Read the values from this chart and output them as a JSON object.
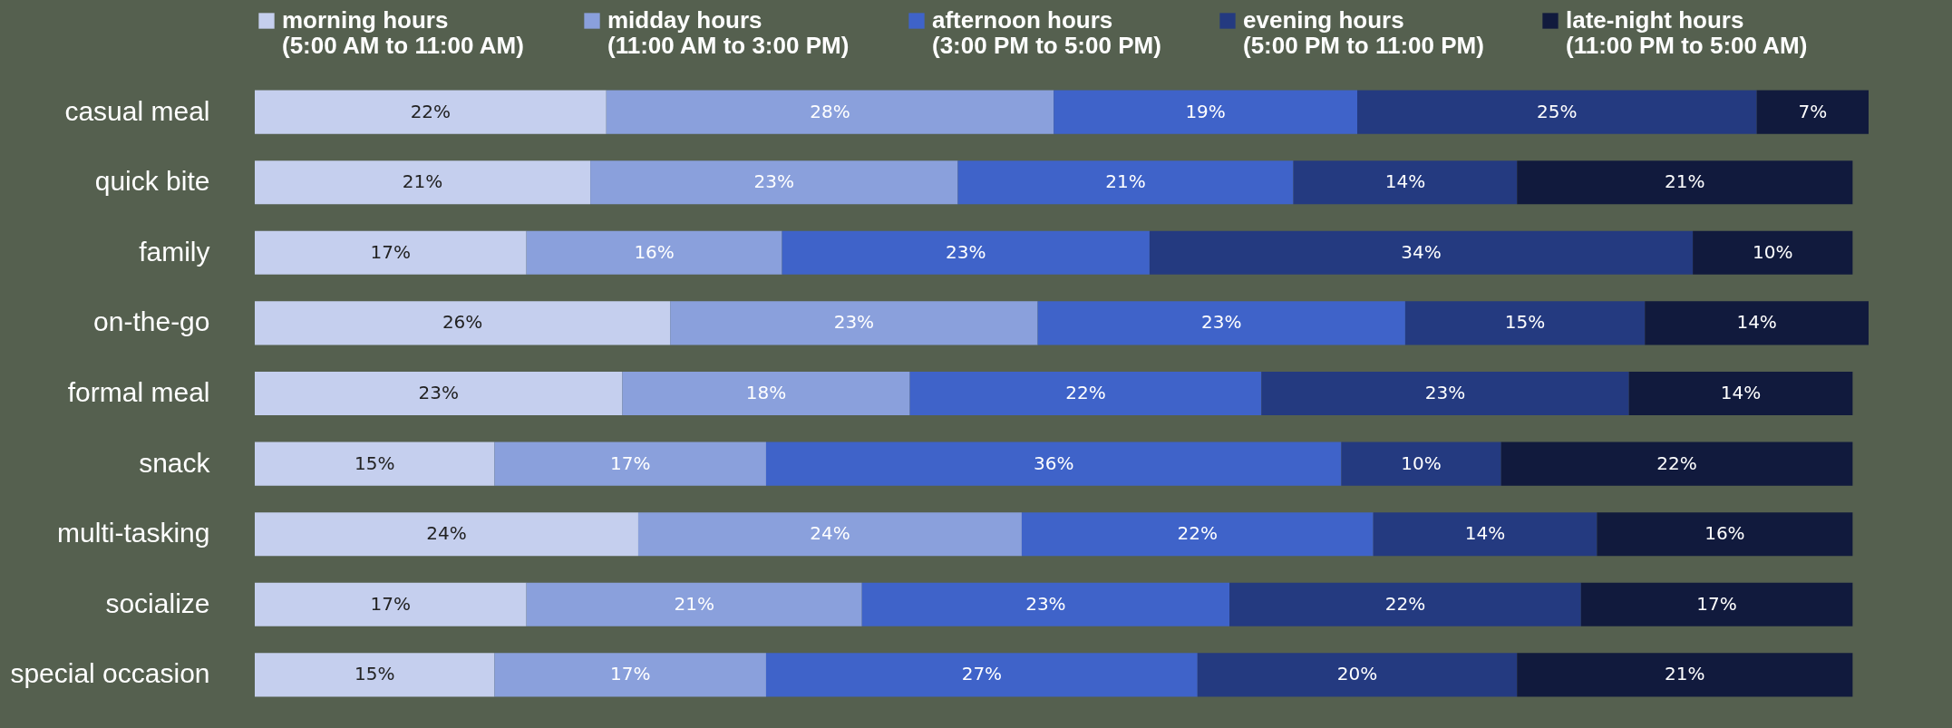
{
  "chart_data": {
    "type": "bar",
    "orientation": "horizontal",
    "stacked": true,
    "legend": "top",
    "grid": false,
    "categories": [
      "casual meal",
      "quick bite",
      "family",
      "on-the-go",
      "formal meal",
      "snack",
      "multi-tasking",
      "socialize",
      "special occasion"
    ],
    "series": [
      {
        "name": "morning hours (5:00 AM to 11:00 AM)",
        "color": "#c5cfee",
        "values": [
          22,
          21,
          17,
          26,
          23,
          15,
          24,
          17,
          15
        ],
        "value_labels": [
          "22%",
          "21%",
          "17%",
          "26%",
          "23%",
          "15%",
          "24%",
          "17%",
          "15%"
        ]
      },
      {
        "name": "midday hours (11:00 AM to 3:00 PM)",
        "color": "#8aa0dc",
        "values": [
          28,
          23,
          16,
          23,
          18,
          17,
          24,
          21,
          17
        ],
        "value_labels": [
          "28%",
          "23%",
          "16%",
          "23%",
          "18%",
          "17%",
          "24%",
          "21%",
          "17%"
        ]
      },
      {
        "name": "afternoon hours (3:00 PM to 5:00 PM)",
        "color": "#3f63c9",
        "values": [
          19,
          21,
          23,
          23,
          22,
          36,
          22,
          23,
          27
        ],
        "value_labels": [
          "19%",
          "21%",
          "23%",
          "23%",
          "22%",
          "36%",
          "22%",
          "23%",
          "27%"
        ]
      },
      {
        "name": "evening hours (5:00 PM to 11:00 PM)",
        "color": "#243a80",
        "values": [
          25,
          14,
          34,
          15,
          23,
          10,
          14,
          22,
          20
        ],
        "value_labels": [
          "25%",
          "14%",
          "34%",
          "15%",
          "23%",
          "10%",
          "14%",
          "22%",
          "20%"
        ]
      },
      {
        "name": "late-night hours (11:00 PM to 5:00 AM)",
        "color": "#111a3d",
        "values": [
          7,
          21,
          10,
          14,
          14,
          22,
          16,
          17,
          21
        ],
        "value_labels": [
          "7%",
          "21%",
          "10%",
          "14%",
          "14%",
          "22%",
          "16%",
          "17%",
          "21%"
        ]
      }
    ]
  }
}
